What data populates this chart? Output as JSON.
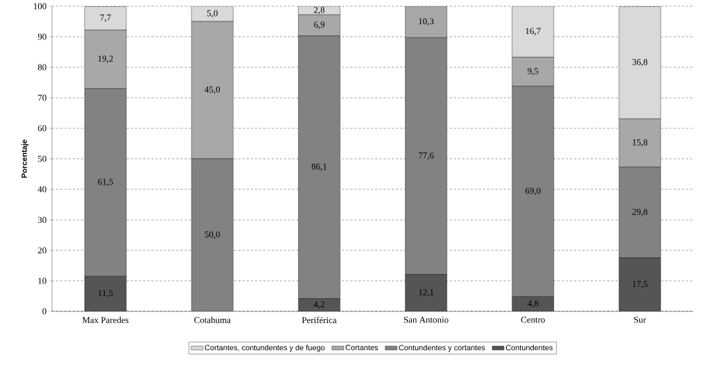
{
  "chart_data": {
    "type": "bar",
    "stacked": true,
    "ylabel": "Porcentaje",
    "categories": [
      "Max Paredes",
      "Cotahuma",
      "Periférica",
      "San Antonio",
      "Centro",
      "Sur"
    ],
    "series": [
      {
        "name": "Contundentes",
        "color": "#555555",
        "values": [
          11.5,
          null,
          4.2,
          12.1,
          4.8,
          17.5
        ],
        "value_labels": [
          "11,5",
          null,
          "4,2",
          "12,1",
          "4,8",
          "17,5"
        ]
      },
      {
        "name": "Contundentes y cortantes",
        "color": "#828282",
        "values": [
          61.5,
          50.0,
          86.1,
          77.6,
          69.0,
          29.8
        ],
        "value_labels": [
          "61,5",
          "50,0",
          "86,1",
          "77,6",
          "69,0",
          "29,8"
        ]
      },
      {
        "name": "Cortantes",
        "color": "#a8a8a8",
        "values": [
          19.2,
          45.0,
          6.9,
          10.3,
          9.5,
          15.8
        ],
        "value_labels": [
          "19,2",
          "45,0",
          "6,9",
          "10,3",
          "9,5",
          "15,8"
        ]
      },
      {
        "name": "Cortantes, contundentes y de fuego",
        "color": "#d9d9d9",
        "values": [
          7.7,
          5.0,
          2.8,
          null,
          16.7,
          36.8
        ],
        "value_labels": [
          "7,7",
          "5,0",
          "2,8",
          null,
          "16,7",
          "36,8"
        ]
      }
    ],
    "ylim": [
      0,
      100
    ],
    "yticks": [
      0,
      10,
      20,
      30,
      40,
      50,
      60,
      70,
      80,
      90,
      100
    ],
    "grid": "y",
    "legend": "bottom"
  }
}
